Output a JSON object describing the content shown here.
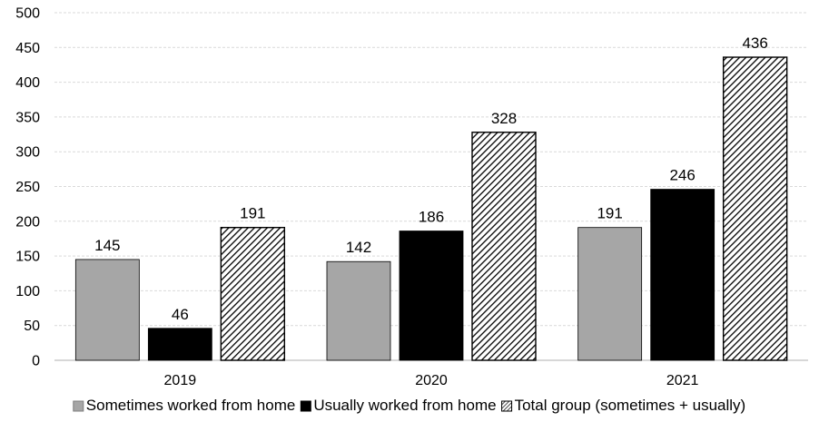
{
  "chart_data": {
    "type": "bar",
    "categories": [
      "2019",
      "2020",
      "2021"
    ],
    "series": [
      {
        "name": "Sometimes worked from home",
        "values": [
          145,
          142,
          191
        ],
        "color": "#a6a6a6",
        "pattern": "solid"
      },
      {
        "name": "Usually worked from home",
        "values": [
          46,
          186,
          246
        ],
        "color": "#000000",
        "pattern": "solid"
      },
      {
        "name": "Total group (sometimes + usually)",
        "values": [
          191,
          328,
          436
        ],
        "color": "#000000",
        "pattern": "diagonal-hatch"
      }
    ],
    "ylim": [
      0,
      500
    ],
    "yticks": [
      0,
      50,
      100,
      150,
      200,
      250,
      300,
      350,
      400,
      450,
      500
    ],
    "grid": true,
    "legend_position": "bottom"
  }
}
